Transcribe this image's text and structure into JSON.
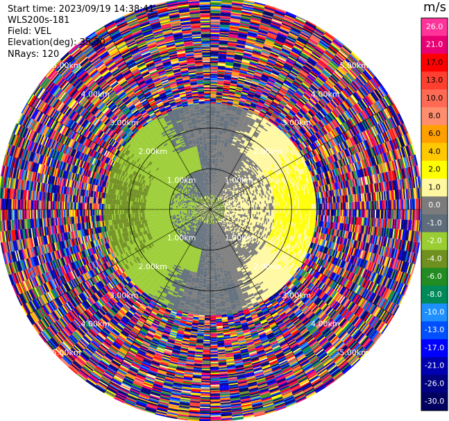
{
  "header": {
    "start_time": "Start time: 2023/09/19 14:38:41",
    "instrument": "WLS200s-181",
    "field": "Field: VEL",
    "elevation": "Elevation(deg): 35.30",
    "nrays": "NRays: 120"
  },
  "chart_data": {
    "type": "ppi",
    "field": "VEL",
    "unit": "m/s",
    "nrays": 120,
    "range_rings_km": [
      1.0,
      2.0,
      3.0,
      4.0,
      5.0
    ],
    "ring_labels": [
      "1.00km",
      "2.00km",
      "3.00km",
      "4.00km",
      "5.00km"
    ],
    "colorbar": {
      "ticks": [
        "26.0",
        "21.0",
        "17.0",
        "13.0",
        "10.0",
        "8.0",
        "6.0",
        "4.0",
        "2.0",
        "1.0",
        "0.0",
        "-1.0",
        "-2.0",
        "-4.0",
        "-6.0",
        "-8.0",
        "-10.0",
        "-13.0",
        "-17.0",
        "-21.0",
        "-26.0",
        "-30.0"
      ],
      "colors": [
        "#ff3399",
        "#e80073",
        "#ff0000",
        "#ff3f2f",
        "#ff6a55",
        "#ff8e6e",
        "#ffa000",
        "#ffc800",
        "#ffff00",
        "#fff8a0",
        "#7b7b7b",
        "#5f6d7a",
        "#9acd32",
        "#6f8f1f",
        "#228b22",
        "#008a5a",
        "#1e90ff",
        "#0050ff",
        "#0000ff",
        "#0000b0",
        "#000080",
        "#000060"
      ]
    },
    "regions": [
      {
        "r_km": [
          0.0,
          0.35
        ],
        "description_vel": [
          -4,
          2
        ]
      },
      {
        "r_km": [
          0.35,
          1.6
        ],
        "description_vel": [
          -2,
          2
        ]
      },
      {
        "r_km": [
          1.6,
          2.6
        ],
        "description_vel": [
          -2,
          2
        ]
      },
      {
        "r_km": [
          2.6,
          5.2
        ],
        "description_vel": [
          -30,
          26
        ]
      }
    ]
  }
}
